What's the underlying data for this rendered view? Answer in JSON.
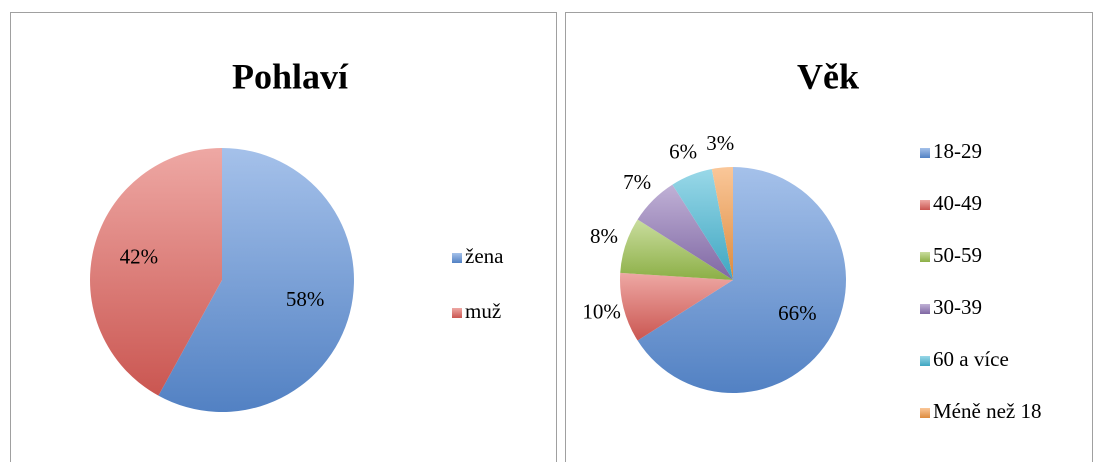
{
  "chart_data": [
    {
      "type": "pie",
      "title": "Pohlaví",
      "categories": [
        "žena",
        "muž"
      ],
      "values": [
        58,
        42
      ],
      "value_labels": [
        "58%",
        "42%"
      ],
      "colors": [
        "#5b8fd9",
        "#e0605a"
      ],
      "legend": "right"
    },
    {
      "type": "pie",
      "title": "Věk",
      "categories": [
        "18-29",
        "40-49",
        "50-59",
        "30-39",
        "60 a více",
        "Méně než 18"
      ],
      "values": [
        66,
        10,
        8,
        7,
        6,
        3
      ],
      "value_labels": [
        "66%",
        "10%",
        "8%",
        "7%",
        "6%",
        "3%"
      ],
      "colors": [
        "#5b8fd9",
        "#e0605a",
        "#9cc24e",
        "#8d72b5",
        "#45b8d6",
        "#f59a45"
      ],
      "legend": "right"
    }
  ]
}
